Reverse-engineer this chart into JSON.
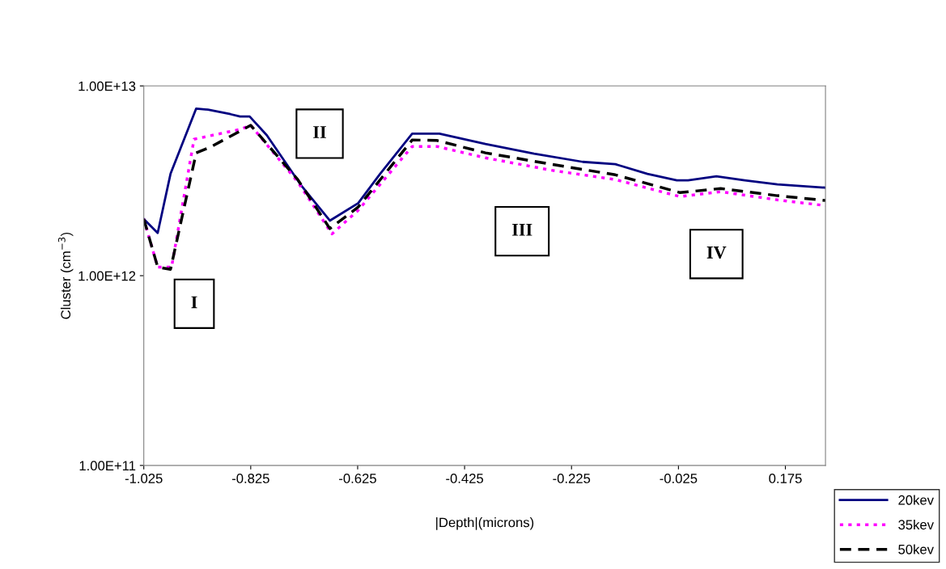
{
  "chart_data": {
    "type": "line",
    "xlabel": "|Depth|(microns)",
    "ylabel": "Cluster (cm$^{−3}$)",
    "xlim": [
      -1.025,
      0.25
    ],
    "xticks": [
      -1.025,
      -0.825,
      -0.625,
      -0.425,
      -0.225,
      -0.025,
      0.175
    ],
    "ylim": [
      100000000000.0,
      10000000000000.0
    ],
    "yticks": [
      {
        "value": 100000000000.0,
        "label": "1.00E+11"
      },
      {
        "value": 1000000000000.0,
        "label": "1.00E+12"
      },
      {
        "value": 10000000000000.0,
        "label": "1.00E+13"
      }
    ],
    "log": "y",
    "grid": false,
    "legend": "bottom right",
    "marker": "none",
    "series": [
      {
        "name": "20kev",
        "color": "#000080",
        "line_style": "solid",
        "x": [
          -1.025,
          -0.999,
          -0.975,
          -0.927,
          -0.905,
          -0.863,
          -0.845,
          -0.827,
          -0.795,
          -0.731,
          -0.677,
          -0.624,
          -0.583,
          -0.523,
          -0.472,
          -0.386,
          -0.295,
          -0.204,
          -0.143,
          -0.083,
          -0.028,
          -0.007,
          0.046,
          0.099,
          0.16,
          0.25
        ],
        "values": [
          1990000000000.0,
          1680000000000.0,
          3440000000000.0,
          7600000000000.0,
          7500000000000.0,
          7100000000000.0,
          6900000000000.0,
          6900000000000.0,
          5500000000000.0,
          3000000000000.0,
          1950000000000.0,
          2410000000000.0,
          3440000000000.0,
          5600000000000.0,
          5600000000000.0,
          4940000000000.0,
          4400000000000.0,
          3980000000000.0,
          3870000000000.0,
          3440000000000.0,
          3180000000000.0,
          3180000000000.0,
          3340000000000.0,
          3180000000000.0,
          3030000000000.0,
          2910000000000.0
        ]
      },
      {
        "name": "35kev",
        "color": "#ff00ff",
        "line_style": "dotted",
        "x": [
          -1.025,
          -0.999,
          -0.973,
          -0.931,
          -0.845,
          -0.825,
          -0.737,
          -0.673,
          -0.624,
          -0.523,
          -0.477,
          -0.386,
          -0.264,
          -0.143,
          -0.022,
          0.054,
          0.16,
          0.25
        ],
        "values": [
          1990000000000.0,
          1110000000000.0,
          1110000000000.0,
          5240000000000.0,
          5900000000000.0,
          6200000000000.0,
          3120000000000.0,
          1660000000000.0,
          2210000000000.0,
          4800000000000.0,
          4800000000000.0,
          4180000000000.0,
          3600000000000.0,
          3210000000000.0,
          2610000000000.0,
          2770000000000.0,
          2510000000000.0,
          2340000000000.0
        ]
      },
      {
        "name": "50kev",
        "color": "#000000",
        "line_style": "dashed",
        "x": [
          -1.025,
          -0.999,
          -0.975,
          -0.927,
          -0.901,
          -0.825,
          -0.737,
          -0.677,
          -0.624,
          -0.523,
          -0.477,
          -0.386,
          -0.264,
          -0.143,
          -0.022,
          0.054,
          0.16,
          0.25
        ],
        "values": [
          1990000000000.0,
          1110000000000.0,
          1080000000000.0,
          4440000000000.0,
          4750000000000.0,
          6200000000000.0,
          3210000000000.0,
          1770000000000.0,
          2300000000000.0,
          5190000000000.0,
          5160000000000.0,
          4440000000000.0,
          3870000000000.0,
          3400000000000.0,
          2740000000000.0,
          2880000000000.0,
          2640000000000.0,
          2490000000000.0
        ]
      }
    ],
    "annotations": [
      "I",
      "II",
      "III",
      "IV"
    ]
  }
}
